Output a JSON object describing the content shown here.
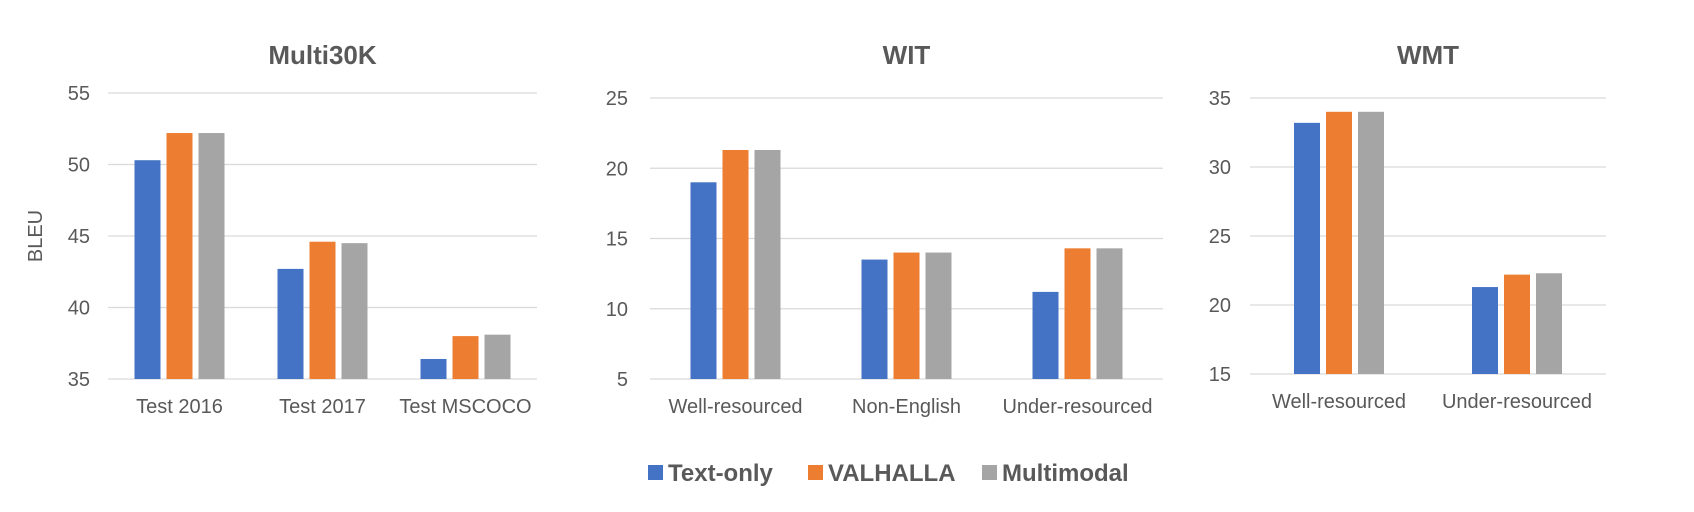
{
  "chart_data": [
    {
      "type": "bar",
      "title": "Multi30K",
      "ylabel": "BLEU",
      "ylim": [
        35,
        55
      ],
      "yticks": [
        35,
        40,
        45,
        50,
        55
      ],
      "categories": [
        "Test 2016",
        "Test 2017",
        "Test MSCOCO"
      ],
      "series": [
        {
          "name": "Text-only",
          "values": [
            50.3,
            42.7,
            36.4
          ]
        },
        {
          "name": "VALHALLA",
          "values": [
            52.2,
            44.6,
            38.0
          ]
        },
        {
          "name": "Multimodal",
          "values": [
            52.2,
            44.5,
            38.1
          ]
        }
      ],
      "grid": true
    },
    {
      "type": "bar",
      "title": "WIT",
      "ylabel": "",
      "ylim": [
        5,
        25
      ],
      "yticks": [
        5,
        10,
        15,
        20,
        25
      ],
      "categories": [
        "Well-resourced",
        "Non-English",
        "Under-resourced"
      ],
      "series": [
        {
          "name": "Text-only",
          "values": [
            19.0,
            13.5,
            11.2
          ]
        },
        {
          "name": "VALHALLA",
          "values": [
            21.3,
            14.0,
            14.3
          ]
        },
        {
          "name": "Multimodal",
          "values": [
            21.3,
            14.0,
            14.3
          ]
        }
      ],
      "grid": true
    },
    {
      "type": "bar",
      "title": "WMT",
      "ylabel": "",
      "ylim": [
        15,
        35
      ],
      "yticks": [
        15,
        20,
        25,
        30,
        35
      ],
      "categories": [
        "Well-resourced",
        "Under-resourced"
      ],
      "series": [
        {
          "name": "Text-only",
          "values": [
            33.2,
            21.3
          ]
        },
        {
          "name": "VALHALLA",
          "values": [
            34.0,
            22.2
          ]
        },
        {
          "name": "Multimodal",
          "values": [
            34.0,
            22.3
          ]
        }
      ],
      "grid": true
    }
  ],
  "legend": {
    "placement": "bottom",
    "items": [
      {
        "label": "Text-only",
        "color": "#4472c4"
      },
      {
        "label": "VALHALLA",
        "color": "#ed7d31"
      },
      {
        "label": "Multimodal",
        "color": "#a5a5a5"
      }
    ]
  }
}
